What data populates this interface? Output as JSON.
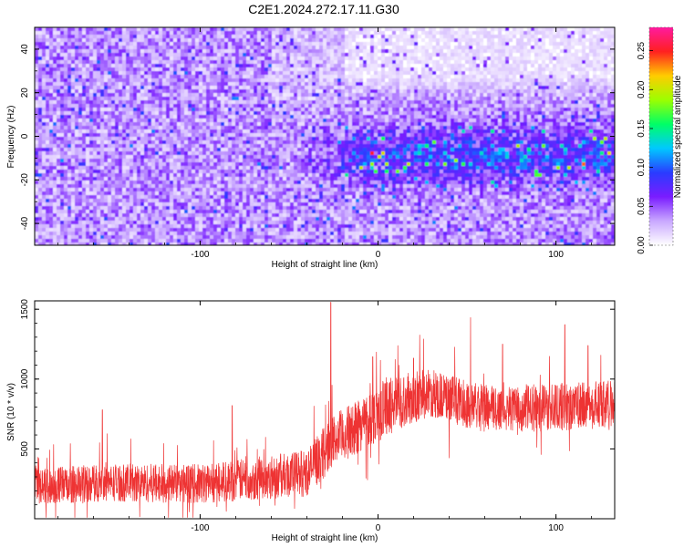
{
  "title": "C2E1.2024.272.17.11.G30",
  "chart_data": [
    {
      "type": "heatmap",
      "title": "C2E1.2024.272.17.11.G30",
      "xlabel": "Height of straight line (km)",
      "ylabel": "Frequency (Hz)",
      "xlim": [
        -193,
        133
      ],
      "ylim": [
        -50,
        50
      ],
      "xticks": [
        -100,
        0,
        100
      ],
      "yticks": [
        -40,
        -20,
        0,
        20,
        40
      ],
      "colorbar": {
        "label": "Normalized spectral amplitude",
        "range": [
          0,
          0.28
        ],
        "ticks": [
          0.0,
          0.05,
          0.1,
          0.15,
          0.2,
          0.25
        ],
        "tick_labels": [
          "0.00",
          "0.05",
          "0.10",
          "0.15",
          "0.20",
          "0.25"
        ],
        "colors": [
          "#ffffff",
          "#c9a8ff",
          "#7a1cff",
          "#2a3cff",
          "#00c8ff",
          "#00ff66",
          "#9cff00",
          "#ffcc00",
          "#ff2020",
          "#ff1aa0"
        ]
      },
      "description_values": {
        "signal_band_hz": [
          -20,
          5
        ],
        "quiet_region": {
          "x": [
            -20,
            133
          ],
          "y": [
            20,
            50
          ]
        }
      }
    },
    {
      "type": "line",
      "xlabel": "Height of straight line (km)",
      "ylabel": "SNR (10 * v/v)",
      "xlim": [
        -193,
        133
      ],
      "ylim": [
        0,
        1560
      ],
      "xticks": [
        -100,
        0,
        100
      ],
      "yticks": [
        500,
        1000,
        1500
      ],
      "color": "#ee3333",
      "series": [
        {
          "values": [
            [
              -193,
              230
            ],
            [
              -150,
              260
            ],
            [
              -100,
              250
            ],
            [
              -60,
              300
            ],
            [
              -40,
              330
            ],
            [
              -30,
              480
            ],
            [
              -25,
              560
            ],
            [
              -15,
              630
            ],
            [
              -5,
              720
            ],
            [
              5,
              800
            ],
            [
              15,
              850
            ],
            [
              25,
              890
            ],
            [
              30,
              900
            ],
            [
              40,
              860
            ],
            [
              50,
              820
            ],
            [
              60,
              790
            ],
            [
              80,
              790
            ],
            [
              100,
              800
            ],
            [
              120,
              810
            ],
            [
              133,
              830
            ]
          ],
          "noise": [
            [
              -193,
              130
            ],
            [
              -100,
              140
            ],
            [
              -50,
              160
            ],
            [
              -30,
              180
            ],
            [
              0,
              210
            ],
            [
              30,
              170
            ],
            [
              133,
              170
            ]
          ],
          "spikes": [
            [
              -155,
              780
            ],
            [
              -82,
              810
            ],
            [
              -26.5,
              1550
            ],
            [
              -3,
              1160
            ],
            [
              20,
              1150
            ],
            [
              52,
              1440
            ],
            [
              70,
              1250
            ],
            [
              105,
              1390
            ],
            [
              118,
              1240
            ]
          ]
        }
      ]
    }
  ]
}
